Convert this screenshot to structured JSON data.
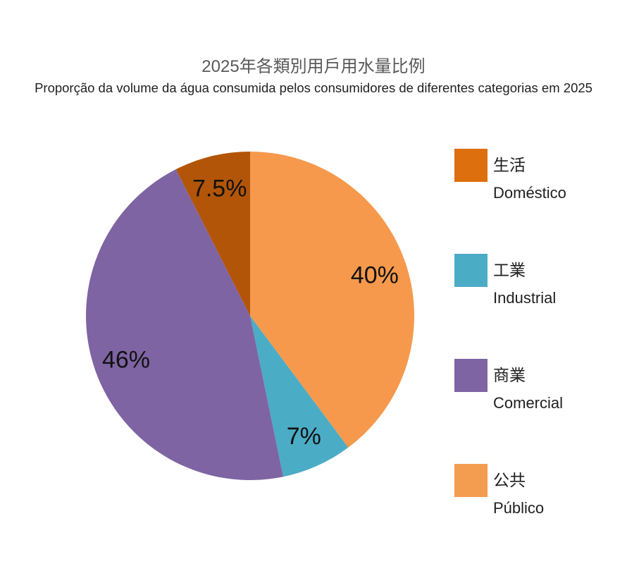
{
  "header": {
    "title": "2025年各類別用戶用水量比例",
    "subtitle": "Proporção da volume da água consumida pelos consumidores de diferentes categorias em 2025",
    "title_color": "#595959"
  },
  "chart_data": {
    "type": "pie",
    "title": "2025年各類別用戶用水量比例",
    "subtitle": "Proporção da volume da água consumida pelos consumidores de diferentes categorias em 2025",
    "unit": "percent",
    "categories": [
      {
        "name_zh": "生活",
        "name_pt": "Doméstico",
        "value": 7.5,
        "data_label": "7.5%",
        "slice_color": "#B35508",
        "legend_color": "#DE6F0E"
      },
      {
        "name_zh": "工業",
        "name_pt": "Industrial",
        "value": 7,
        "data_label": "7%",
        "slice_color": "#4BACC6",
        "legend_color": "#4BACC6"
      },
      {
        "name_zh": "商業",
        "name_pt": "Comercial",
        "value": 46,
        "data_label": "46%",
        "slice_color": "#7E64A3",
        "legend_color": "#7E64A3"
      },
      {
        "name_zh": "公共",
        "name_pt": "Público",
        "value": 40,
        "data_label": "40%",
        "slice_color": "#F6994C",
        "legend_color": "#F49C4F"
      }
    ],
    "slice_order_clockwise_from_top": [
      3,
      1,
      2,
      0
    ],
    "start_angle_deg": 0,
    "direction": "clockwise",
    "labels_inside": true,
    "label_color": "#111111",
    "legend_position": "right"
  }
}
